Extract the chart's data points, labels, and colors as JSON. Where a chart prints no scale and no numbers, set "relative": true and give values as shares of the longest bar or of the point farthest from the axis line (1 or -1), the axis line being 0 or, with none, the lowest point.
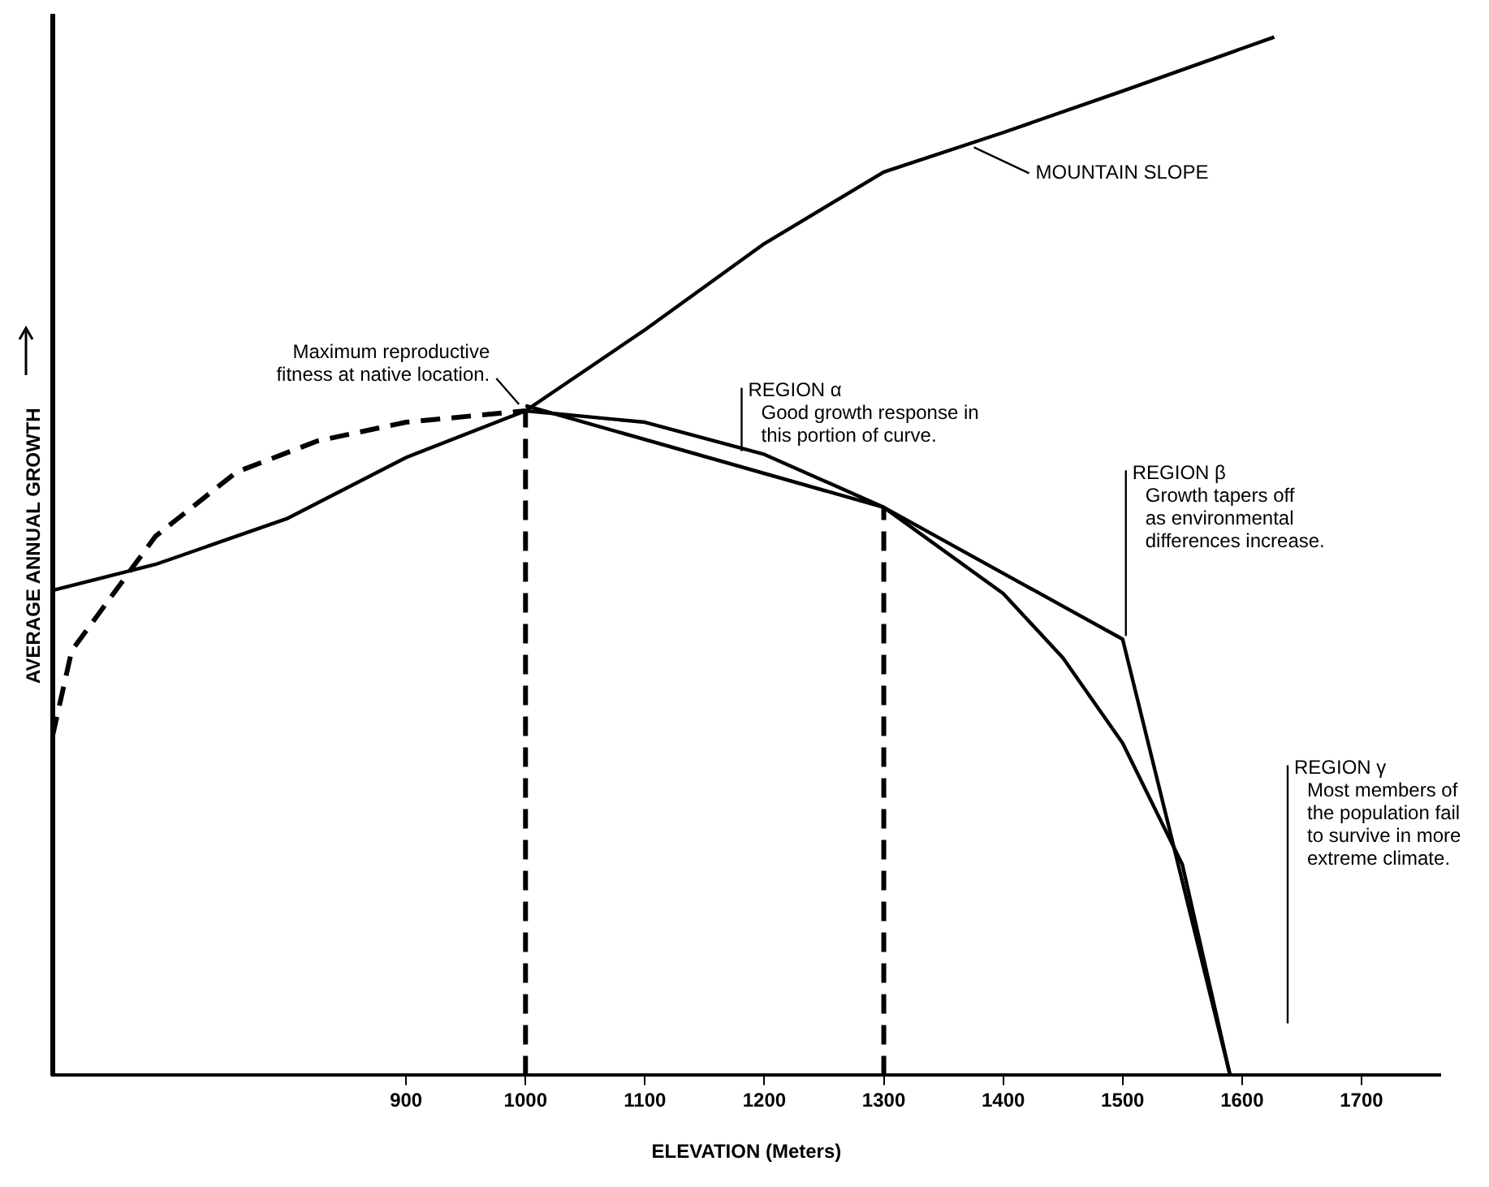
{
  "chart_data": {
    "type": "line",
    "relative": true,
    "xlabel": "ELEVATION (Meters)",
    "ylabel": "AVERAGE ANNUAL GROWTH",
    "xlim": [
      604,
      1766
    ],
    "xticks": [
      900,
      1000,
      1100,
      1200,
      1300,
      1400,
      1500,
      1600,
      1700
    ],
    "grid": false,
    "legend": false,
    "marker": "none",
    "series": [
      {
        "type": "line",
        "color": "#000000",
        "line_style": "solid",
        "x": [
          604,
          690,
          800,
          900,
          1000,
          1100,
          1200,
          1300,
          1400,
          1500,
          1627
        ],
        "values": [
          0.467,
          0.492,
          0.536,
          0.595,
          0.64,
          0.718,
          0.801,
          0.87,
          0.908,
          0.948,
          1.0
        ]
      },
      {
        "type": "line",
        "color": "#000000",
        "line_style": "dashed",
        "x": [
          604,
          620,
          690,
          758,
          826,
          900,
          1000
        ],
        "values": [
          0.327,
          0.409,
          0.519,
          0.581,
          0.611,
          0.629,
          0.64
        ]
      },
      {
        "type": "line",
        "color": "#000000",
        "line_style": "solid",
        "x": [
          1000,
          1100,
          1200,
          1300,
          1400,
          1450,
          1500,
          1550,
          1590
        ],
        "values": [
          0.64,
          0.629,
          0.598,
          0.547,
          0.464,
          0.402,
          0.32,
          0.203,
          0
        ]
      },
      {
        "type": "line",
        "color": "#000000",
        "line_style": "solid",
        "x": [
          1000,
          1300,
          1500,
          1590
        ],
        "values": [
          0.645,
          0.547,
          0.42,
          0
        ]
      },
      {
        "type": "line",
        "color": "#000000",
        "line_style": "dashed",
        "x": [
          1000,
          1000
        ],
        "values": [
          0,
          0.64
        ]
      },
      {
        "type": "line",
        "color": "#000000",
        "line_style": "dashed",
        "x": [
          1300,
          1300
        ],
        "values": [
          0,
          0.547
        ]
      }
    ],
    "annotations": [
      {
        "text": "MOUNTAIN SLOPE",
        "x": 1370,
        "y": 0.897
      },
      {
        "text": "Maximum reproductive\nfitness at native location.",
        "x": 1000,
        "y": 0.64
      },
      {
        "text": "REGION α\nGood growth response in\nthis portion of curve.",
        "x": 1200,
        "y": 0.598
      },
      {
        "text": "REGION β\nGrowth tapers off\nas environmental\ndifferences increase.",
        "x": 1500,
        "y": 0.42
      },
      "REGION γ\nMost members of\nthe population fail\nto survive in more\nextreme climate."
    ]
  }
}
